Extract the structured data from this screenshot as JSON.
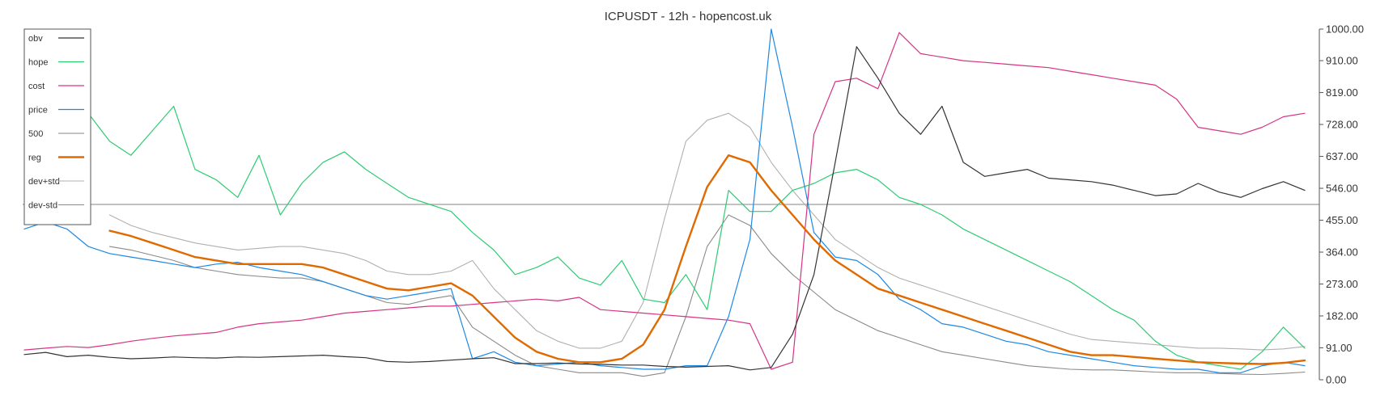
{
  "chart_data": {
    "type": "line",
    "title": "ICPUSDT - 12h - hopencost.uk",
    "xlabel": "",
    "ylabel": "",
    "ylim": [
      0,
      1000
    ],
    "yticks": [
      "0.00",
      "91.00",
      "182.00",
      "273.00",
      "364.00",
      "455.00",
      "546.00",
      "637.00",
      "728.00",
      "819.00",
      "910.00",
      "1000.00"
    ],
    "reference_line": 500,
    "legend_position": "top-left",
    "grid": false,
    "x_count": 61,
    "series": [
      {
        "name": "obv",
        "color": "#333333",
        "width": 1.2,
        "values": [
          72,
          78,
          66,
          70,
          64,
          60,
          62,
          65,
          63,
          62,
          65,
          64,
          66,
          68,
          70,
          66,
          63,
          52,
          50,
          52,
          56,
          60,
          63,
          46,
          46,
          48,
          45,
          44,
          42,
          42,
          38,
          36,
          38,
          40,
          28,
          35,
          130,
          300,
          620,
          950,
          860,
          760,
          700,
          780,
          620,
          580,
          590,
          600,
          575,
          570,
          565,
          555,
          540,
          525,
          530,
          560,
          535,
          520,
          545,
          565,
          540
        ]
      },
      {
        "name": "hope",
        "color": "#2ecc71",
        "width": 1.2,
        "values": [
          880,
          990,
          810,
          760,
          680,
          640,
          710,
          780,
          600,
          570,
          520,
          640,
          470,
          560,
          620,
          650,
          600,
          560,
          520,
          500,
          480,
          420,
          370,
          300,
          320,
          350,
          290,
          270,
          340,
          230,
          220,
          300,
          200,
          540,
          480,
          480,
          540,
          560,
          590,
          600,
          570,
          520,
          500,
          470,
          430,
          400,
          370,
          340,
          310,
          280,
          240,
          200,
          170,
          110,
          70,
          50,
          40,
          30,
          80,
          150,
          90
        ]
      },
      {
        "name": "cost",
        "color": "#d63384",
        "width": 1.2,
        "values": [
          85,
          90,
          95,
          92,
          100,
          110,
          118,
          125,
          130,
          135,
          150,
          160,
          165,
          170,
          180,
          190,
          195,
          200,
          205,
          210,
          210,
          215,
          220,
          225,
          230,
          225,
          235,
          200,
          195,
          190,
          185,
          180,
          175,
          170,
          160,
          30,
          50,
          700,
          850,
          860,
          830,
          990,
          930,
          920,
          910,
          905,
          900,
          895,
          890,
          880,
          870,
          860,
          850,
          840,
          800,
          720,
          710,
          700,
          720,
          750,
          760
        ]
      },
      {
        "name": "price",
        "color": "#1e88e5",
        "width": 1.2,
        "values": [
          430,
          450,
          430,
          380,
          360,
          350,
          340,
          330,
          320,
          330,
          335,
          320,
          310,
          300,
          280,
          260,
          240,
          230,
          240,
          250,
          260,
          60,
          80,
          50,
          40,
          45,
          50,
          40,
          35,
          30,
          30,
          40,
          40,
          180,
          400,
          1000,
          720,
          420,
          350,
          340,
          300,
          230,
          200,
          160,
          150,
          130,
          110,
          100,
          80,
          70,
          60,
          50,
          40,
          35,
          30,
          30,
          20,
          20,
          40,
          50,
          40
        ]
      },
      {
        "name": "500",
        "color": "#888888",
        "width": 1.1,
        "values": [
          null,
          null,
          null,
          null,
          null,
          null,
          null,
          null,
          null,
          null,
          null,
          null,
          null,
          null,
          null,
          null,
          null,
          null,
          null,
          null,
          null,
          null,
          null,
          null,
          null,
          null,
          null,
          null,
          null,
          null,
          null,
          null,
          null,
          null,
          null,
          null,
          null,
          null,
          null,
          null,
          null,
          null,
          null,
          null,
          null,
          null,
          null,
          null,
          null,
          null,
          null,
          null,
          null,
          null,
          null,
          null,
          null,
          null,
          null,
          null,
          null
        ]
      },
      {
        "name": "reg",
        "color": "#e06a00",
        "width": 2.4,
        "values": [
          null,
          null,
          null,
          null,
          425,
          410,
          390,
          370,
          350,
          340,
          330,
          330,
          330,
          330,
          320,
          300,
          280,
          260,
          255,
          265,
          275,
          240,
          180,
          120,
          80,
          60,
          50,
          50,
          60,
          100,
          200,
          380,
          550,
          640,
          620,
          540,
          470,
          400,
          340,
          300,
          260,
          240,
          220,
          200,
          180,
          160,
          140,
          120,
          100,
          80,
          70,
          70,
          65,
          60,
          55,
          50,
          48,
          46,
          45,
          48,
          55
        ]
      },
      {
        "name": "dev+std",
        "color": "#b0b0b0",
        "width": 1.1,
        "values": [
          null,
          null,
          null,
          null,
          470,
          440,
          420,
          405,
          390,
          380,
          370,
          375,
          380,
          380,
          370,
          360,
          340,
          310,
          300,
          300,
          310,
          340,
          260,
          200,
          140,
          110,
          90,
          90,
          110,
          220,
          460,
          680,
          740,
          760,
          720,
          620,
          540,
          470,
          400,
          360,
          320,
          290,
          270,
          250,
          230,
          210,
          190,
          170,
          150,
          130,
          115,
          110,
          105,
          100,
          95,
          90,
          90,
          88,
          85,
          88,
          95
        ]
      },
      {
        "name": "dev-std",
        "color": "#8a8a8a",
        "width": 1.1,
        "values": [
          null,
          null,
          null,
          null,
          380,
          370,
          355,
          340,
          320,
          310,
          300,
          295,
          290,
          290,
          280,
          260,
          240,
          220,
          215,
          230,
          240,
          150,
          110,
          70,
          40,
          30,
          20,
          20,
          20,
          10,
          20,
          180,
          380,
          470,
          440,
          360,
          300,
          250,
          200,
          170,
          140,
          120,
          100,
          80,
          70,
          60,
          50,
          40,
          35,
          30,
          28,
          28,
          25,
          22,
          20,
          20,
          18,
          16,
          15,
          18,
          22
        ]
      }
    ]
  }
}
